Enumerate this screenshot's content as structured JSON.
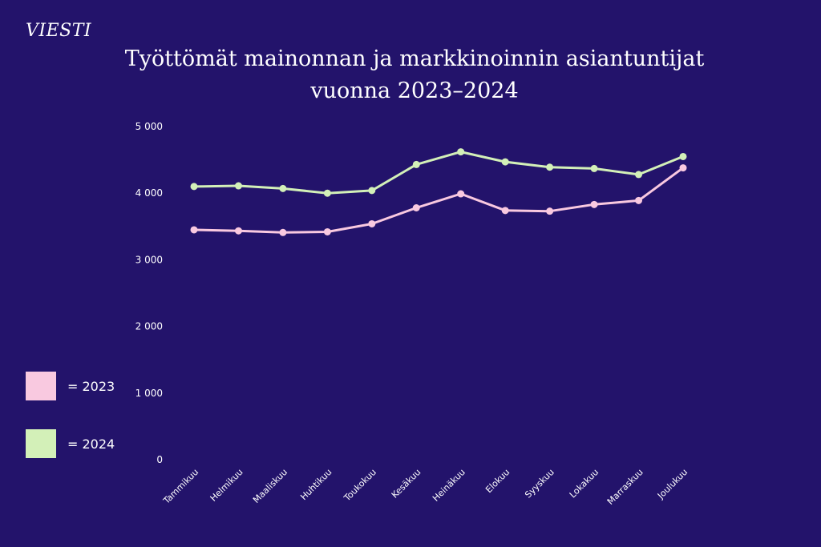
{
  "logo": "VIESTI",
  "title_line1": "Työttömät mainonnan ja markkinoinnin asiantuntijat",
  "title_line2": "vuonna 2023–2024",
  "legend": [
    {
      "label": "= 2023",
      "color": "#f9c9e0"
    },
    {
      "label": "= 2024",
      "color": "#d3f0b8"
    }
  ],
  "chart_data": {
    "type": "line",
    "title": "Työttömät mainonnan ja markkinoinnin asiantuntijat vuonna 2023–2024",
    "xlabel": "",
    "ylabel": "",
    "ylim": [
      0,
      5000
    ],
    "yticks": [
      0,
      1000,
      2000,
      3000,
      4000,
      5000
    ],
    "ytick_labels": [
      "0",
      "1 000",
      "2 000",
      "3 000",
      "4 000",
      "5 000"
    ],
    "categories": [
      "Tammikuu",
      "Helmikuu",
      "Maaliskuu",
      "Huhtikuu",
      "Toukokuu",
      "Kesäkuu",
      "Heinäkuu",
      "Elokuu",
      "Syyskuu",
      "Lokakuu",
      "Marraskuu",
      "Joulukuu"
    ],
    "grid": false,
    "legend_position": "left",
    "series": [
      {
        "name": "2023",
        "color": "#f9c9e0",
        "values": [
          3450,
          3435,
          3410,
          3420,
          3540,
          3780,
          3990,
          3740,
          3730,
          3830,
          3890,
          4380
        ]
      },
      {
        "name": "2024",
        "color": "#d3f0b8",
        "values": [
          4100,
          4110,
          4070,
          4000,
          4040,
          4430,
          4620,
          4470,
          4390,
          4370,
          4280,
          4550
        ]
      }
    ]
  }
}
